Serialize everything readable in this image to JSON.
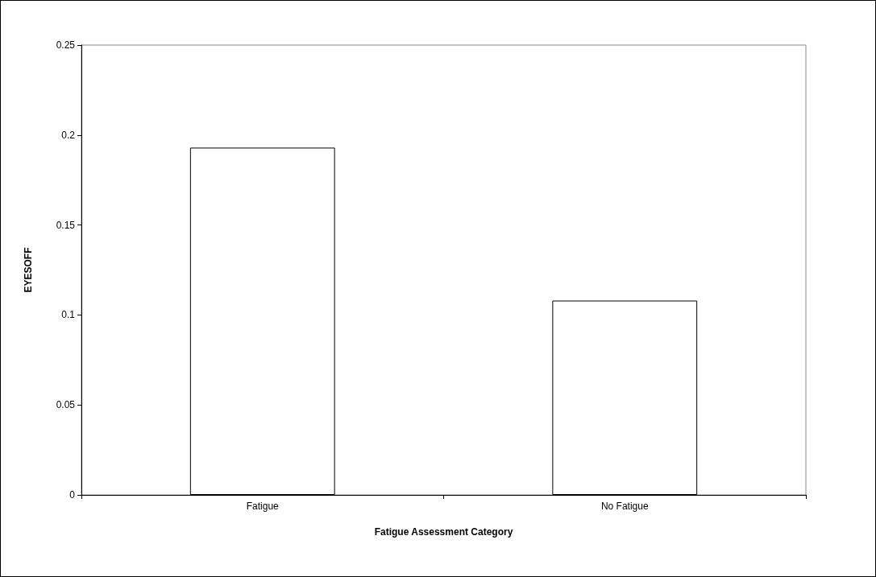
{
  "chart_data": {
    "type": "bar",
    "xlabel": "Fatigue Assessment Category",
    "ylabel": "EYESOFF",
    "categories": [
      "Fatigue",
      "No Fatigue"
    ],
    "values": [
      0.193,
      0.108
    ],
    "color": "#ffffff",
    "ylim": [
      0,
      0.25
    ],
    "yticks": [
      0,
      0.05,
      0.1,
      0.15,
      0.2,
      0.25
    ],
    "grid": false
  }
}
